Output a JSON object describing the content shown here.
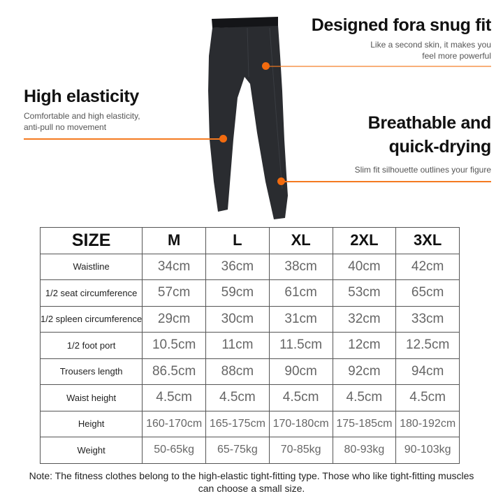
{
  "features": [
    {
      "title": "Designed fora snug fit",
      "desc": [
        "Like a second skin, it makes you",
        "feel more powerful"
      ]
    },
    {
      "title": "High elasticity",
      "desc": [
        "Comfortable and high elasticity,",
        "anti-pull no movement"
      ]
    },
    {
      "title_lines": [
        "Breathable and",
        "quick-drying"
      ],
      "desc": [
        "Slim fit silhouette outlines your figure"
      ]
    }
  ],
  "accent_color": "#f26b0f",
  "size_table": {
    "header": [
      "SIZE",
      "M",
      "L",
      "XL",
      "2XL",
      "3XL"
    ],
    "rows": [
      {
        "label": "Waistline",
        "values": [
          "34cm",
          "36cm",
          "38cm",
          "40cm",
          "42cm"
        ]
      },
      {
        "label": "1/2 seat circumference",
        "values": [
          "57cm",
          "59cm",
          "61cm",
          "53cm",
          "65cm"
        ]
      },
      {
        "label": "1/2 spleen circumference",
        "values": [
          "29cm",
          "30cm",
          "31cm",
          "32cm",
          "33cm"
        ]
      },
      {
        "label": "1/2 foot port",
        "values": [
          "10.5cm",
          "11cm",
          "11.5cm",
          "12cm",
          "12.5cm"
        ]
      },
      {
        "label": "Trousers length",
        "values": [
          "86.5cm",
          "88cm",
          "90cm",
          "92cm",
          "94cm"
        ]
      },
      {
        "label": "Waist height",
        "values": [
          "4.5cm",
          "4.5cm",
          "4.5cm",
          "4.5cm",
          "4.5cm"
        ]
      },
      {
        "label": "Height",
        "values": [
          "160-170cm",
          "165-175cm",
          "170-180cm",
          "175-185cm",
          "180-192cm"
        ]
      },
      {
        "label": "Weight",
        "values": [
          "50-65kg",
          "65-75kg",
          "70-85kg",
          "80-93kg",
          "90-103kg"
        ]
      }
    ]
  },
  "note": "Note: The fitness clothes belong to the high-elastic tight-fitting type. Those who like tight-fitting muscles can choose a small size."
}
